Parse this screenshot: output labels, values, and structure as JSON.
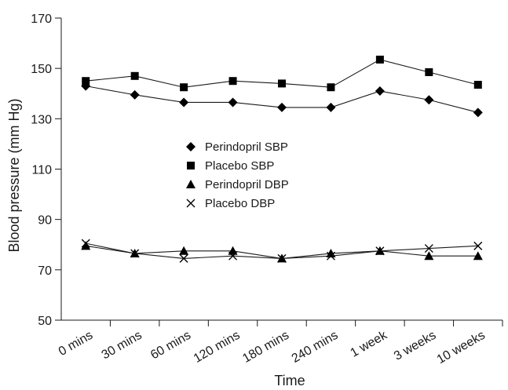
{
  "chart_data": {
    "type": "line",
    "categories": [
      "0 mins",
      "30 mins",
      "60 mins",
      "120 mins",
      "180 mins",
      "240 mins",
      "1 week",
      "3 weeks",
      "10 weeks"
    ],
    "xlabel": "Time",
    "ylabel": "Blood pressure (mm Hg)",
    "ylim": [
      50,
      170
    ],
    "yticks": [
      50,
      70,
      90,
      110,
      130,
      150,
      170
    ],
    "grid": false,
    "legend_position": "center",
    "series": [
      {
        "name": "Perindopril SBP",
        "marker": "diamond",
        "values": [
          143,
          139.5,
          136.5,
          136.5,
          134.5,
          134.5,
          141,
          137.5,
          132.5
        ]
      },
      {
        "name": "Placebo SBP",
        "marker": "square",
        "values": [
          145,
          147,
          142.5,
          145,
          144,
          142.5,
          153.5,
          148.5,
          143.5
        ]
      },
      {
        "name": "Perindopril DBP",
        "marker": "triangle",
        "values": [
          79.5,
          76.5,
          77.5,
          77.5,
          74.5,
          76.5,
          77.5,
          75.5,
          75.5
        ]
      },
      {
        "name": "Placebo DBP",
        "marker": "cross",
        "values": [
          80.5,
          76.5,
          74.5,
          75.5,
          74.5,
          75.5,
          77.5,
          78.5,
          79.5
        ]
      }
    ],
    "colors": {
      "line": "#1a1a1a",
      "marker": "#000000"
    }
  }
}
